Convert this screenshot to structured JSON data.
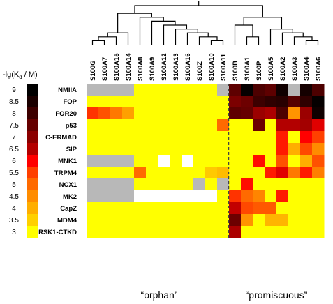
{
  "chart_data": {
    "type": "heatmap",
    "color_scale": {
      "title_prefix": "-lg(K",
      "title_sub": "d",
      "title_suffix": " / M)",
      "ticks": [
        "9",
        "8.5",
        "8",
        "7.5",
        "7",
        "6.5",
        "6",
        "5.5",
        "5",
        "4.5",
        "4",
        "3.5",
        "3"
      ],
      "min": 3,
      "max": 9,
      "colors": [
        "#000000",
        "#1a0000",
        "#3d0000",
        "#660000",
        "#8b0000",
        "#b30000",
        "#ff0000",
        "#ff4000",
        "#ff6a00",
        "#ff8c00",
        "#ffae00",
        "#ffd000",
        "#ffff00"
      ]
    },
    "no_data_colors": {
      "gray": "#b8b8b8",
      "white": "#ffffff"
    },
    "columns": [
      "S100G",
      "S100A7",
      "S100A15",
      "S100A14",
      "S100A8",
      "S100A9",
      "S100A12",
      "S100A13",
      "S100A16",
      "S100Z",
      "S100A10",
      "S100A11",
      "S100B",
      "S100A1",
      "S100P",
      "S100A5",
      "S100A2",
      "S100A3",
      "S100A4",
      "S100A6"
    ],
    "rows": [
      "NMIIA",
      "FOP",
      "FOR20",
      "p53",
      "C-ERMAD",
      "SIP",
      "MNK1",
      "TRPM4",
      "NCX1",
      "MK2",
      "CapZ",
      "MDM4",
      "RSK1-CTKD"
    ],
    "values": [
      [
        "g",
        "g",
        "g",
        "g",
        3,
        3,
        3,
        3,
        3,
        3,
        3,
        "g",
        7.6,
        8.9,
        7.8,
        7.6,
        8.7,
        "g",
        8.6,
        7.8
      ],
      [
        3,
        3,
        3,
        3,
        3,
        3,
        3,
        3,
        3,
        3,
        3,
        3,
        7.2,
        7.4,
        8.0,
        8.2,
        8.3,
        7.7,
        8.2,
        8.9
      ],
      [
        5.6,
        5.3,
        4.8,
        4.2,
        3,
        3,
        3,
        3,
        3,
        3,
        3,
        3,
        7.6,
        7.5,
        6.8,
        6.6,
        7.8,
        4.4,
        6.8,
        8.7
      ],
      [
        3,
        3,
        3,
        3,
        3,
        3,
        3,
        3,
        3,
        3,
        3,
        5.0,
        3,
        3,
        7.4,
        3,
        6.5,
        6.5,
        6.7,
        6.2
      ],
      [
        3,
        3,
        3,
        3,
        3,
        3,
        3,
        3,
        3,
        3,
        3,
        3,
        3,
        3,
        3,
        3,
        5.8,
        3,
        6.0,
        5.5
      ],
      [
        3,
        3,
        3,
        3,
        3,
        3,
        3,
        3,
        3,
        3,
        3,
        3,
        3,
        3,
        3,
        3,
        5.8,
        4.0,
        5.4,
        4.5
      ],
      [
        "g",
        "g",
        "g",
        "g",
        3,
        3,
        "w",
        3,
        "w",
        3,
        3,
        3,
        3,
        3,
        5.9,
        3,
        5.3,
        3,
        4.0,
        5.3
      ],
      [
        3,
        3,
        3,
        3,
        5.0,
        3,
        3,
        3,
        3,
        3,
        3.6,
        3.8,
        3,
        3,
        3,
        5.8,
        6.2,
        4.8,
        5.8,
        4.7
      ],
      [
        "g",
        "g",
        "g",
        "g",
        3,
        3,
        3,
        3,
        3,
        "g",
        3,
        "g",
        3,
        5.9,
        3,
        3,
        3,
        3,
        3,
        3
      ],
      [
        "g",
        "g",
        "g",
        "g",
        "w",
        "w",
        "w",
        "w",
        "w",
        "w",
        "w",
        3,
        5.6,
        5.0,
        4.6,
        3,
        5.8,
        3,
        3,
        3
      ],
      [
        3,
        3,
        3,
        3,
        3,
        3,
        3,
        3,
        3,
        3,
        3,
        3,
        6.4,
        5.4,
        5.2,
        5.2,
        3,
        3,
        3,
        3
      ],
      [
        3,
        3,
        3,
        3,
        3,
        3,
        3,
        3,
        3,
        3,
        3,
        3,
        7.4,
        4.4,
        3,
        3.9,
        3.9,
        3,
        3,
        3
      ],
      [
        3,
        3,
        3,
        3,
        3,
        3,
        3,
        3,
        3,
        3,
        3,
        3,
        6.6,
        3,
        3,
        3,
        3,
        3,
        3,
        3
      ]
    ],
    "separator_after_column": "S100A11",
    "group_labels": [
      "“orphan”",
      "“promiscuous”"
    ],
    "dendrogram": [
      {
        "left": 0,
        "right": 1,
        "height": 1
      },
      {
        "left": "n0",
        "right": 2,
        "height": 2
      },
      {
        "left": "n1",
        "right": 3,
        "height": 3
      },
      {
        "left": 10,
        "right": 11,
        "height": 1
      },
      {
        "left": 9,
        "right": "n3",
        "height": 2
      },
      {
        "left": 8,
        "right": "n4",
        "height": 3
      },
      {
        "left": 7,
        "right": "n5",
        "height": 4
      },
      {
        "left": 6,
        "right": "n6",
        "height": 5
      },
      {
        "left": 5,
        "right": "n7",
        "height": 6
      },
      {
        "left": 4,
        "right": "n8",
        "height": 7
      },
      {
        "left": "n2",
        "right": "n9",
        "height": 8
      },
      {
        "left": 13,
        "right": 14,
        "height": 2
      },
      {
        "left": 12,
        "right": "n11",
        "height": 5
      },
      {
        "left": 18,
        "right": 19,
        "height": 1
      },
      {
        "left": 17,
        "right": "n13",
        "height": 2
      },
      {
        "left": 16,
        "right": "n14",
        "height": 3
      },
      {
        "left": 15,
        "right": "n15",
        "height": 4
      },
      {
        "left": "n12",
        "right": "n16",
        "height": 7
      },
      {
        "left": "n10",
        "right": "n17",
        "height": 10
      }
    ]
  }
}
